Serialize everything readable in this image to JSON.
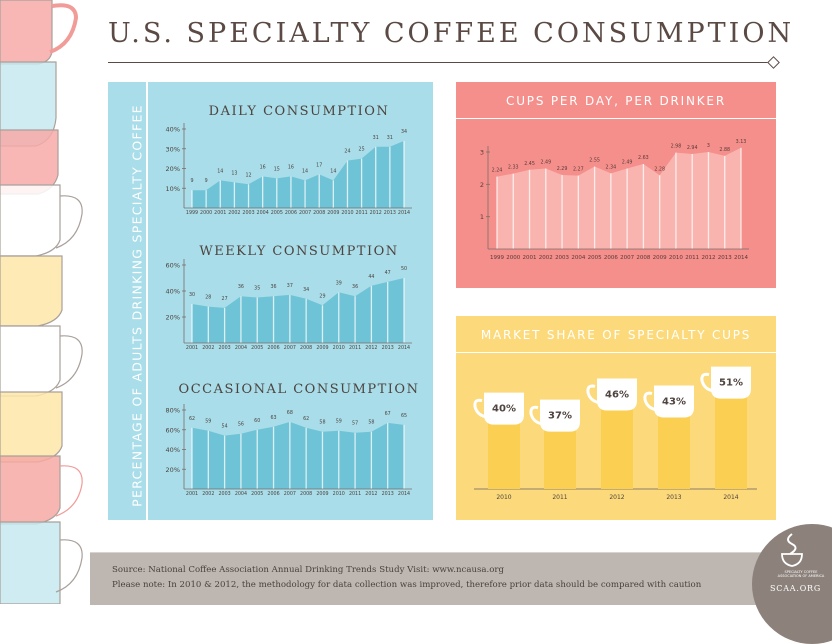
{
  "title": "U.S. SPECIALTY COFFEE CONSUMPTION",
  "vertical_label": "PERCENTAGE OF ADULTS DRINKING SPECIALTY COFFEE",
  "colors": {
    "blue_panel": "#a8dde9",
    "blue_area": "#6ec3d6",
    "pink_panel": "#f48f8b",
    "pink_area": "#f9b4b0",
    "yellow_panel": "#fcda7b",
    "yellow_bar": "#fbcf52",
    "brown_text": "#5b4a44"
  },
  "chart_data": [
    {
      "id": "daily",
      "type": "area",
      "title": "DAILY CONSUMPTION",
      "categories": [
        "1999",
        "2000",
        "2001",
        "2002",
        "2003",
        "2004",
        "2005",
        "2006",
        "2007",
        "2008",
        "2009",
        "2010",
        "2011",
        "2012",
        "2013",
        "2014"
      ],
      "values": [
        9,
        9,
        14,
        13,
        12,
        16,
        15,
        16,
        14,
        17,
        14,
        24,
        25,
        31,
        31,
        34
      ],
      "yticks": [
        "10%",
        "20%",
        "30%",
        "40%"
      ],
      "ylim": [
        0,
        40
      ],
      "unit": "%"
    },
    {
      "id": "weekly",
      "type": "area",
      "title": "WEEKLY CONSUMPTION",
      "categories": [
        "2001",
        "2002",
        "2003",
        "2004",
        "2005",
        "2006",
        "2007",
        "2008",
        "2009",
        "2010",
        "2011",
        "2012",
        "2013",
        "2014"
      ],
      "values": [
        30,
        28,
        27,
        36,
        35,
        36,
        37,
        34,
        29,
        39,
        36,
        44,
        47,
        50
      ],
      "yticks": [
        "20%",
        "40%",
        "60%"
      ],
      "ylim": [
        0,
        60
      ],
      "unit": "%"
    },
    {
      "id": "occasional",
      "type": "area",
      "title": "OCCASIONAL CONSUMPTION",
      "categories": [
        "2001",
        "2002",
        "2003",
        "2004",
        "2005",
        "2006",
        "2007",
        "2008",
        "2009",
        "2010",
        "2011",
        "2012",
        "2013",
        "2014"
      ],
      "values": [
        62,
        59,
        54,
        56,
        60,
        63,
        68,
        62,
        58,
        59,
        57,
        58,
        67,
        65
      ],
      "yticks": [
        "20%",
        "40%",
        "60%",
        "80%"
      ],
      "ylim": [
        0,
        80
      ],
      "unit": "%"
    },
    {
      "id": "cups",
      "type": "area",
      "title": "CUPS PER DAY, PER DRINKER",
      "categories": [
        "1999",
        "2000",
        "2001",
        "2002",
        "2003",
        "2004",
        "2005",
        "2006",
        "2007",
        "2008",
        "2009",
        "2010",
        "2011",
        "2012",
        "2013",
        "2014"
      ],
      "values": [
        2.24,
        2.33,
        2.45,
        2.49,
        2.29,
        2.27,
        2.55,
        2.34,
        2.49,
        2.63,
        2.28,
        2.98,
        2.94,
        3,
        2.88,
        3.13
      ],
      "yticks": [
        "1",
        "2",
        "3"
      ],
      "ylim": [
        0,
        3
      ]
    },
    {
      "id": "share",
      "type": "bar",
      "title": "MARKET SHARE OF SPECIALTY CUPS",
      "categories": [
        "2010",
        "2011",
        "2012",
        "2013",
        "2014"
      ],
      "values": [
        40,
        37,
        46,
        43,
        51
      ],
      "labels": [
        "40%",
        "37%",
        "46%",
        "43%",
        "51%"
      ]
    }
  ],
  "footer": {
    "source": "Source: National Coffee Association Annual Drinking Trends Study Visit: www.ncausa.org",
    "note": "Please note: In 2010 & 2012, the methodology for data collection was improved, therefore prior data should be compared with caution"
  },
  "logo": {
    "name": "SPECIALTY COFFEE ASSOCIATION OF AMERICA",
    "url_text": "SCAA.ORG"
  }
}
